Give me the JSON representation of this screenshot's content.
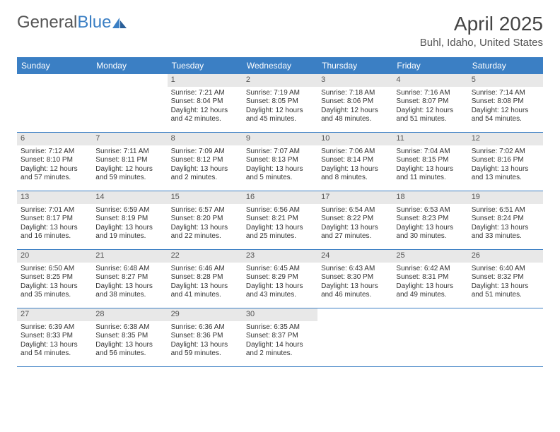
{
  "logo": {
    "part1": "General",
    "part2": "Blue"
  },
  "header": {
    "title": "April 2025",
    "location": "Buhl, Idaho, United States"
  },
  "colors": {
    "header_bg": "#3b7fc4",
    "header_text": "#ffffff",
    "daynum_bg": "#e8e8e8",
    "body_bg": "#ffffff",
    "text": "#333333",
    "title_text": "#444444"
  },
  "dayHeaders": [
    "Sunday",
    "Monday",
    "Tuesday",
    "Wednesday",
    "Thursday",
    "Friday",
    "Saturday"
  ],
  "weeks": [
    [
      {
        "n": "",
        "sr": "",
        "ss": "",
        "dl": ""
      },
      {
        "n": "",
        "sr": "",
        "ss": "",
        "dl": ""
      },
      {
        "n": "1",
        "sr": "Sunrise: 7:21 AM",
        "ss": "Sunset: 8:04 PM",
        "dl": "Daylight: 12 hours and 42 minutes."
      },
      {
        "n": "2",
        "sr": "Sunrise: 7:19 AM",
        "ss": "Sunset: 8:05 PM",
        "dl": "Daylight: 12 hours and 45 minutes."
      },
      {
        "n": "3",
        "sr": "Sunrise: 7:18 AM",
        "ss": "Sunset: 8:06 PM",
        "dl": "Daylight: 12 hours and 48 minutes."
      },
      {
        "n": "4",
        "sr": "Sunrise: 7:16 AM",
        "ss": "Sunset: 8:07 PM",
        "dl": "Daylight: 12 hours and 51 minutes."
      },
      {
        "n": "5",
        "sr": "Sunrise: 7:14 AM",
        "ss": "Sunset: 8:08 PM",
        "dl": "Daylight: 12 hours and 54 minutes."
      }
    ],
    [
      {
        "n": "6",
        "sr": "Sunrise: 7:12 AM",
        "ss": "Sunset: 8:10 PM",
        "dl": "Daylight: 12 hours and 57 minutes."
      },
      {
        "n": "7",
        "sr": "Sunrise: 7:11 AM",
        "ss": "Sunset: 8:11 PM",
        "dl": "Daylight: 12 hours and 59 minutes."
      },
      {
        "n": "8",
        "sr": "Sunrise: 7:09 AM",
        "ss": "Sunset: 8:12 PM",
        "dl": "Daylight: 13 hours and 2 minutes."
      },
      {
        "n": "9",
        "sr": "Sunrise: 7:07 AM",
        "ss": "Sunset: 8:13 PM",
        "dl": "Daylight: 13 hours and 5 minutes."
      },
      {
        "n": "10",
        "sr": "Sunrise: 7:06 AM",
        "ss": "Sunset: 8:14 PM",
        "dl": "Daylight: 13 hours and 8 minutes."
      },
      {
        "n": "11",
        "sr": "Sunrise: 7:04 AM",
        "ss": "Sunset: 8:15 PM",
        "dl": "Daylight: 13 hours and 11 minutes."
      },
      {
        "n": "12",
        "sr": "Sunrise: 7:02 AM",
        "ss": "Sunset: 8:16 PM",
        "dl": "Daylight: 13 hours and 13 minutes."
      }
    ],
    [
      {
        "n": "13",
        "sr": "Sunrise: 7:01 AM",
        "ss": "Sunset: 8:17 PM",
        "dl": "Daylight: 13 hours and 16 minutes."
      },
      {
        "n": "14",
        "sr": "Sunrise: 6:59 AM",
        "ss": "Sunset: 8:19 PM",
        "dl": "Daylight: 13 hours and 19 minutes."
      },
      {
        "n": "15",
        "sr": "Sunrise: 6:57 AM",
        "ss": "Sunset: 8:20 PM",
        "dl": "Daylight: 13 hours and 22 minutes."
      },
      {
        "n": "16",
        "sr": "Sunrise: 6:56 AM",
        "ss": "Sunset: 8:21 PM",
        "dl": "Daylight: 13 hours and 25 minutes."
      },
      {
        "n": "17",
        "sr": "Sunrise: 6:54 AM",
        "ss": "Sunset: 8:22 PM",
        "dl": "Daylight: 13 hours and 27 minutes."
      },
      {
        "n": "18",
        "sr": "Sunrise: 6:53 AM",
        "ss": "Sunset: 8:23 PM",
        "dl": "Daylight: 13 hours and 30 minutes."
      },
      {
        "n": "19",
        "sr": "Sunrise: 6:51 AM",
        "ss": "Sunset: 8:24 PM",
        "dl": "Daylight: 13 hours and 33 minutes."
      }
    ],
    [
      {
        "n": "20",
        "sr": "Sunrise: 6:50 AM",
        "ss": "Sunset: 8:25 PM",
        "dl": "Daylight: 13 hours and 35 minutes."
      },
      {
        "n": "21",
        "sr": "Sunrise: 6:48 AM",
        "ss": "Sunset: 8:27 PM",
        "dl": "Daylight: 13 hours and 38 minutes."
      },
      {
        "n": "22",
        "sr": "Sunrise: 6:46 AM",
        "ss": "Sunset: 8:28 PM",
        "dl": "Daylight: 13 hours and 41 minutes."
      },
      {
        "n": "23",
        "sr": "Sunrise: 6:45 AM",
        "ss": "Sunset: 8:29 PM",
        "dl": "Daylight: 13 hours and 43 minutes."
      },
      {
        "n": "24",
        "sr": "Sunrise: 6:43 AM",
        "ss": "Sunset: 8:30 PM",
        "dl": "Daylight: 13 hours and 46 minutes."
      },
      {
        "n": "25",
        "sr": "Sunrise: 6:42 AM",
        "ss": "Sunset: 8:31 PM",
        "dl": "Daylight: 13 hours and 49 minutes."
      },
      {
        "n": "26",
        "sr": "Sunrise: 6:40 AM",
        "ss": "Sunset: 8:32 PM",
        "dl": "Daylight: 13 hours and 51 minutes."
      }
    ],
    [
      {
        "n": "27",
        "sr": "Sunrise: 6:39 AM",
        "ss": "Sunset: 8:33 PM",
        "dl": "Daylight: 13 hours and 54 minutes."
      },
      {
        "n": "28",
        "sr": "Sunrise: 6:38 AM",
        "ss": "Sunset: 8:35 PM",
        "dl": "Daylight: 13 hours and 56 minutes."
      },
      {
        "n": "29",
        "sr": "Sunrise: 6:36 AM",
        "ss": "Sunset: 8:36 PM",
        "dl": "Daylight: 13 hours and 59 minutes."
      },
      {
        "n": "30",
        "sr": "Sunrise: 6:35 AM",
        "ss": "Sunset: 8:37 PM",
        "dl": "Daylight: 14 hours and 2 minutes."
      },
      {
        "n": "",
        "sr": "",
        "ss": "",
        "dl": ""
      },
      {
        "n": "",
        "sr": "",
        "ss": "",
        "dl": ""
      },
      {
        "n": "",
        "sr": "",
        "ss": "",
        "dl": ""
      }
    ]
  ]
}
